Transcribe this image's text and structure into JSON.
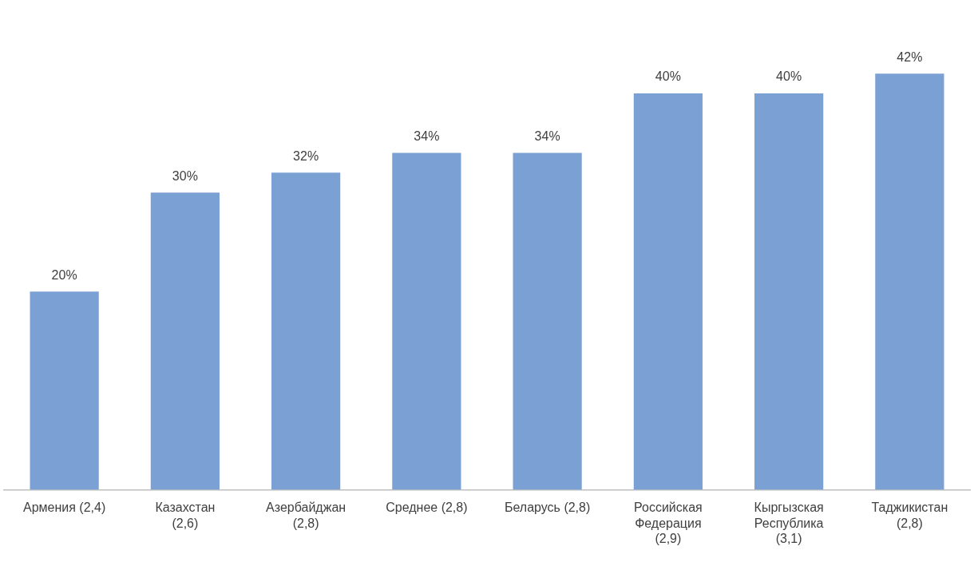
{
  "chart_data": {
    "type": "bar",
    "categories": [
      "Армения (2,4)",
      "Казахстан (2,6)",
      "Азербайджан (2,8)",
      "Среднее (2,8)",
      "Беларусь (2,8)",
      "Российская Федерация (2,9)",
      "Кыргызская Республика (3,1)",
      "Таджикистан (2,8)"
    ],
    "values": [
      20,
      30,
      32,
      34,
      34,
      40,
      40,
      42
    ],
    "value_labels": [
      "20%",
      "30%",
      "32%",
      "34%",
      "34%",
      "40%",
      "40%",
      "42%"
    ],
    "color": "#7ba1d4",
    "grid": false,
    "legend": false
  }
}
